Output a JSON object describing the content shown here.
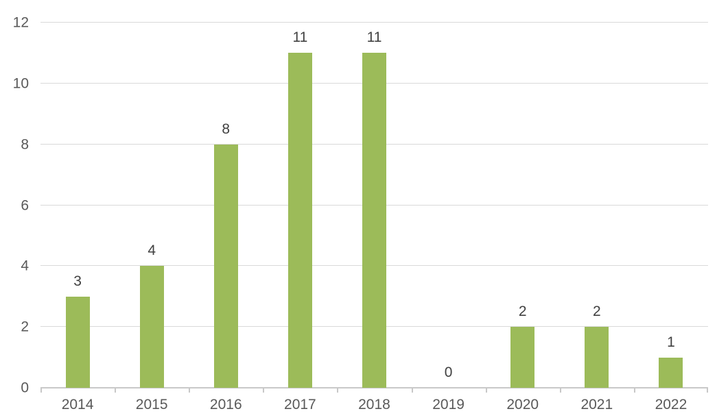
{
  "chart_data": {
    "type": "bar",
    "title": "",
    "xlabel": "",
    "ylabel": "",
    "categories": [
      "2014",
      "2015",
      "2016",
      "2017",
      "2018",
      "2019",
      "2020",
      "2021",
      "2022"
    ],
    "values": [
      3,
      4,
      8,
      11,
      11,
      0,
      2,
      2,
      1
    ],
    "data_labels": [
      "3",
      "4",
      "8",
      "11",
      "11",
      "0",
      "2",
      "2",
      "1"
    ],
    "y_ticks": [
      0,
      2,
      4,
      6,
      8,
      10,
      12
    ],
    "y_tick_labels": [
      "0",
      "2",
      "4",
      "6",
      "8",
      "10",
      "12"
    ],
    "ylim": [
      0,
      12
    ],
    "grid": true,
    "legend": false,
    "colors": {
      "bar": "#9CBB59",
      "gridline": "#D9D9D9",
      "axis_line": "#C8C8C8",
      "axis_label_text": "#595959",
      "data_label_text": "#404040",
      "background": "#FFFFFF"
    }
  }
}
